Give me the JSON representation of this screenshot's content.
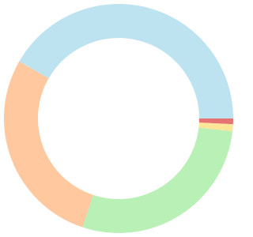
{
  "chart_data": {
    "type": "donut",
    "values": [
      0.8,
      1.0,
      28.3,
      28.2,
      41.7
    ],
    "colors": [
      "#e57373",
      "#fde59a",
      "#b9f0b5",
      "#ffc89e",
      "#bde3f0"
    ]
  }
}
